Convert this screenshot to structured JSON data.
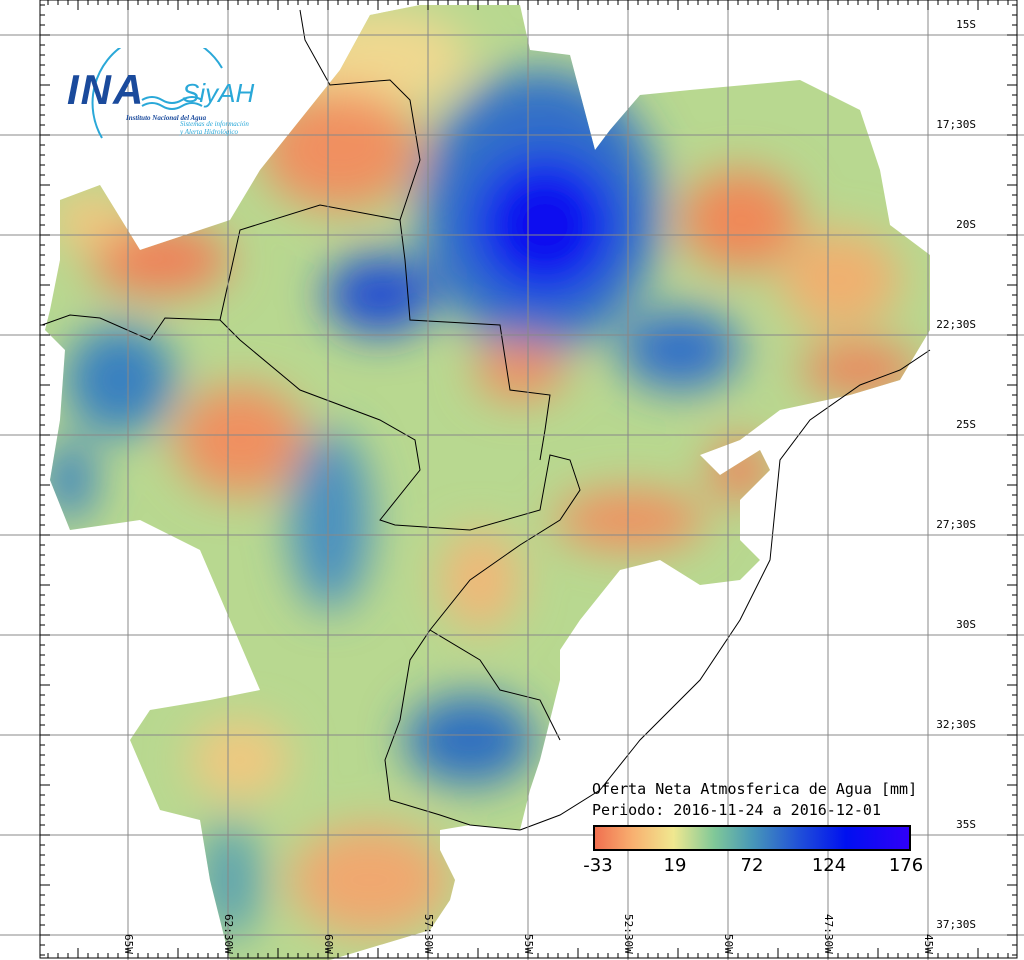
{
  "logo": {
    "name": "INA",
    "subname": "SiyAH",
    "institute": "Instituto Nacional del Agua",
    "system_line1": "Sistemas de información",
    "system_line2": "y Alerta Hidrológico"
  },
  "map": {
    "title": "Oferta Neta Atmosferica de Agua [mm]",
    "period": "Periodo: 2016-11-24 a 2016-12-01",
    "colorbar_ticks": [
      "-33",
      "19",
      "72",
      "124",
      "176"
    ],
    "colorbar_range": [
      -33,
      176
    ],
    "colors": {
      "low": "#f07050",
      "mid_low": "#f0e890",
      "mid": "#4898b8",
      "high": "#2050d8",
      "max": "#3000f8"
    },
    "lat_labels": [
      "15S",
      "17;30S",
      "20S",
      "22;30S",
      "25S",
      "27;30S",
      "30S",
      "32;30S",
      "35S",
      "37;30S"
    ],
    "lon_labels": [
      "65W",
      "62:30W",
      "60W",
      "57:30W",
      "55W",
      "52:30W",
      "50W",
      "47:30W",
      "45W"
    ]
  }
}
